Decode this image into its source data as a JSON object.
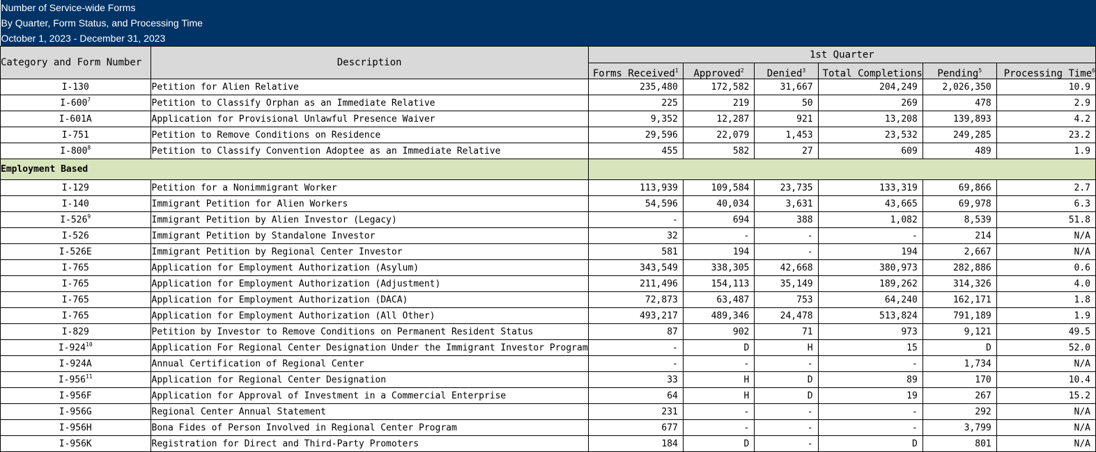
{
  "report": {
    "title_line1": "Number of Service-wide Forms",
    "title_line2": "By Quarter, Form Status, and Processing Time",
    "title_line3": "October 1, 2023 - December 31, 2023"
  },
  "table_header": {
    "quarter": "1st Quarter",
    "col_category": "Category and Form Number",
    "col_description": "Description",
    "col_received": "Forms Received",
    "col_received_note": "1",
    "col_approved": "Approved",
    "col_approved_note": "2",
    "col_denied": "Denied",
    "col_denied_note": "3",
    "col_completions": "Total Completions",
    "col_pending": "Pending",
    "col_pending_note": "5",
    "col_processing": "Processing Time",
    "col_processing_note": "6"
  },
  "rows_family": [
    {
      "form": "I-130",
      "note": "",
      "desc": "Petition for Alien Relative",
      "received": "235,480",
      "approved": "172,582",
      "denied": "31,667",
      "completions": "204,249",
      "pending": "2,026,350",
      "time": "10.9"
    },
    {
      "form": "I-600",
      "note": "7",
      "desc": "Petition to Classify Orphan as an Immediate Relative",
      "received": "225",
      "approved": "219",
      "denied": "50",
      "completions": "269",
      "pending": "478",
      "time": "2.9"
    },
    {
      "form": "I-601A",
      "note": "",
      "desc": "Application for Provisional Unlawful Presence Waiver",
      "received": "9,352",
      "approved": "12,287",
      "denied": "921",
      "completions": "13,208",
      "pending": "139,893",
      "time": "4.2"
    },
    {
      "form": "I-751",
      "note": "",
      "desc": "Petition to Remove Conditions on Residence",
      "received": "29,596",
      "approved": "22,079",
      "denied": "1,453",
      "completions": "23,532",
      "pending": "249,285",
      "time": "23.2"
    },
    {
      "form": "I-800",
      "note": "8",
      "desc": "Petition to Classify Convention Adoptee as an Immediate Relative",
      "received": "455",
      "approved": "582",
      "denied": "27",
      "completions": "609",
      "pending": "489",
      "time": "1.9"
    }
  ],
  "section_employment": "Employment Based",
  "rows_employment": [
    {
      "form": "I-129",
      "note": "",
      "desc": "Petition for a Nonimmigrant Worker",
      "received": "113,939",
      "approved": "109,584",
      "denied": "23,735",
      "completions": "133,319",
      "pending": "69,866",
      "time": "2.7"
    },
    {
      "form": "I-140",
      "note": "",
      "desc": "Immigrant Petition for Alien Workers",
      "received": "54,596",
      "approved": "40,034",
      "denied": "3,631",
      "completions": "43,665",
      "pending": "69,978",
      "time": "6.3"
    },
    {
      "form": "I-526",
      "note": "9",
      "desc": "Immigrant Petition by Alien Investor (Legacy)",
      "received": "-",
      "approved": "694",
      "denied": "388",
      "completions": "1,082",
      "pending": "8,539",
      "time": "51.8"
    },
    {
      "form": "I-526",
      "note": "",
      "desc": "Immigrant Petition by Standalone Investor",
      "received": "32",
      "approved": "-",
      "denied": "-",
      "completions": "-",
      "pending": "214",
      "time": "N/A"
    },
    {
      "form": "I-526E",
      "note": "",
      "desc": "Immigrant Petition by Regional Center Investor",
      "received": "581",
      "approved": "194",
      "denied": "-",
      "completions": "194",
      "pending": "2,667",
      "time": "N/A"
    },
    {
      "form": "I-765",
      "note": "",
      "desc": "Application for Employment Authorization (Asylum)",
      "received": "343,549",
      "approved": "338,305",
      "denied": "42,668",
      "completions": "380,973",
      "pending": "282,886",
      "time": "0.6"
    },
    {
      "form": "I-765",
      "note": "",
      "desc": "Application for Employment Authorization (Adjustment)",
      "received": "211,496",
      "approved": "154,113",
      "denied": "35,149",
      "completions": "189,262",
      "pending": "314,326",
      "time": "4.0"
    },
    {
      "form": "I-765",
      "note": "",
      "desc": "Application for Employment Authorization (DACA)",
      "received": "72,873",
      "approved": "63,487",
      "denied": "753",
      "completions": "64,240",
      "pending": "162,171",
      "time": "1.8"
    },
    {
      "form": "I-765",
      "note": "",
      "desc": "Application for Employment Authorization (All Other)",
      "received": "493,217",
      "approved": "489,346",
      "denied": "24,478",
      "completions": "513,824",
      "pending": "791,189",
      "time": "1.9"
    },
    {
      "form": "I-829",
      "note": "",
      "desc": "Petition by Investor to Remove Conditions on Permanent Resident Status",
      "received": "87",
      "approved": "902",
      "denied": "71",
      "completions": "973",
      "pending": "9,121",
      "time": "49.5"
    },
    {
      "form": "I-924",
      "note": "10",
      "desc": "Application For Regional Center Designation Under the Immigrant Investor Program",
      "received": "-",
      "approved": "D",
      "denied": "H",
      "completions": "15",
      "pending": "D",
      "time": "52.0"
    },
    {
      "form": "I-924A",
      "note": "",
      "desc": "Annual Certification of Regional Center",
      "received": "-",
      "approved": "-",
      "denied": "-",
      "completions": "-",
      "pending": "1,734",
      "time": "N/A"
    },
    {
      "form": "I-956",
      "note": "11",
      "desc": "Application for Regional Center Designation",
      "received": "33",
      "approved": "H",
      "denied": "D",
      "completions": "89",
      "pending": "170",
      "time": "10.4"
    },
    {
      "form": "I-956F",
      "note": "",
      "desc": "Application for Approval of Investment in a Commercial Enterprise",
      "received": "64",
      "approved": "H",
      "denied": "D",
      "completions": "19",
      "pending": "267",
      "time": "15.2"
    },
    {
      "form": "I-956G",
      "note": "",
      "desc": "Regional Center Annual Statement",
      "received": "231",
      "approved": "-",
      "denied": "-",
      "completions": "-",
      "pending": "292",
      "time": "N/A"
    },
    {
      "form": "I-956H",
      "note": "",
      "desc": "Bona Fides of Person Involved in Regional Center Program",
      "received": "677",
      "approved": "-",
      "denied": "-",
      "completions": "-",
      "pending": "3,799",
      "time": "N/A"
    },
    {
      "form": "I-956K",
      "note": "",
      "desc": "Registration for Direct and Third-Party Promoters",
      "received": "184",
      "approved": "D",
      "denied": "-",
      "completions": "D",
      "pending": "801",
      "time": "N/A"
    }
  ]
}
